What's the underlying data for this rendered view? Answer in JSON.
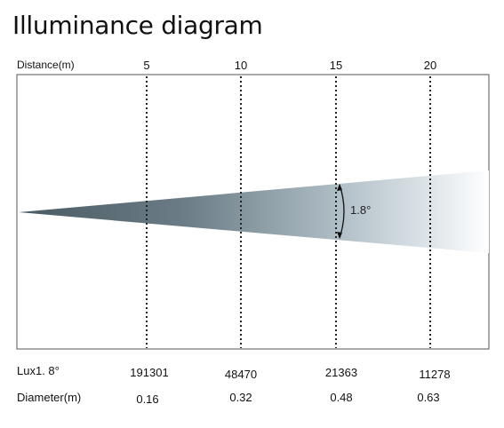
{
  "title": "Illuminance diagram",
  "distance_label": "Distance(m)",
  "distances": [
    "5",
    "10",
    "15",
    "20"
  ],
  "beam_angle": "1.8°",
  "lux_label": "Lux1. 8°",
  "lux_values": [
    "191301",
    "48470",
    "21363",
    "11278"
  ],
  "diameter_label": "Diameter(m)",
  "diameter_values": [
    "0.16",
    "0.32",
    "0.48",
    "0.63"
  ],
  "colors": {
    "beam_dark": "#4d5d66",
    "beam_light": "#ffffff",
    "frame": "#444444",
    "guides": "#222222"
  }
}
